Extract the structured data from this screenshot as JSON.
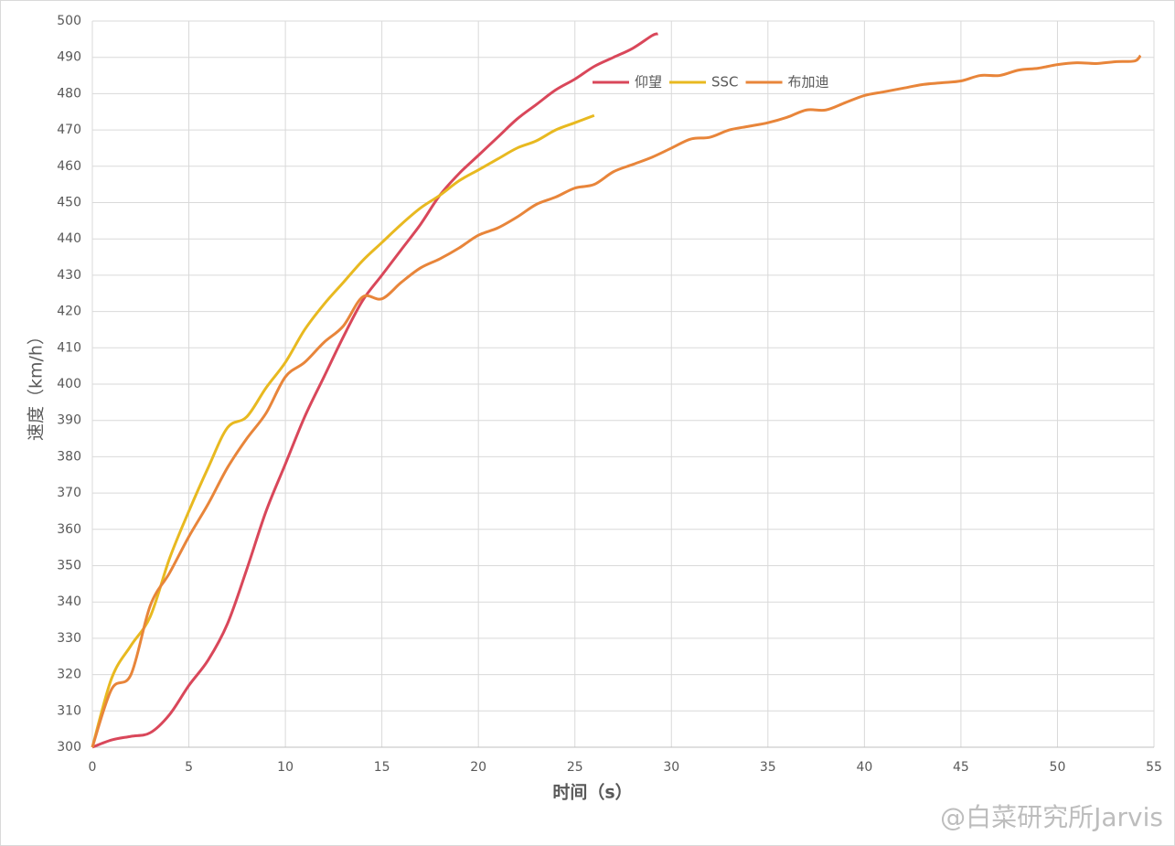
{
  "chart_data": {
    "type": "line",
    "xlabel": "时间（s）",
    "ylabel": "速度（km/h）",
    "xlim": [
      0,
      55
    ],
    "xticks": [
      0,
      5,
      10,
      15,
      20,
      25,
      30,
      35,
      40,
      45,
      50,
      55
    ],
    "ylim": [
      300,
      500
    ],
    "yticks": [
      300,
      310,
      320,
      330,
      340,
      350,
      360,
      370,
      380,
      390,
      400,
      410,
      420,
      430,
      440,
      450,
      460,
      470,
      480,
      490,
      500
    ],
    "grid": true,
    "legend": "top",
    "watermark": "@白菜研究所Jarvis",
    "series": [
      {
        "name": "仰望",
        "color": "#d9475a",
        "x": [
          0,
          1,
          2,
          3,
          4,
          5,
          6,
          7,
          8,
          9,
          10,
          11,
          12,
          13,
          14,
          15,
          16,
          17,
          18,
          19,
          20,
          21,
          22,
          23,
          24,
          25,
          26,
          27,
          28,
          29,
          29.3
        ],
        "values": [
          300,
          302,
          303,
          304,
          309,
          317,
          324,
          334,
          349,
          365,
          378,
          391,
          402,
          413,
          423,
          430,
          437,
          444,
          452,
          458,
          463,
          468,
          473,
          477,
          481,
          484,
          487.5,
          490,
          492.5,
          496,
          496.5
        ]
      },
      {
        "name": "SSC",
        "color": "#e8b920",
        "x": [
          0,
          1,
          2,
          3,
          4,
          5,
          6,
          7,
          8,
          9,
          10,
          11,
          12,
          13,
          14,
          15,
          16,
          17,
          18,
          19,
          20,
          21,
          22,
          23,
          24,
          25,
          26
        ],
        "values": [
          300,
          319,
          328,
          336,
          352,
          365,
          377,
          388,
          391,
          399,
          406,
          415,
          422,
          428,
          434,
          439,
          444,
          448.5,
          452,
          456,
          459,
          462,
          465,
          467,
          470,
          472,
          474
        ]
      },
      {
        "name": "布加迪",
        "color": "#e8853a",
        "x": [
          0,
          1,
          2,
          3,
          4,
          5,
          6,
          7,
          8,
          9,
          10,
          11,
          12,
          13,
          14,
          15,
          16,
          17,
          18,
          19,
          20,
          21,
          22,
          23,
          24,
          25,
          26,
          27,
          28,
          29,
          30,
          31,
          32,
          33,
          34,
          35,
          36,
          37,
          38,
          39,
          40,
          41,
          42,
          43,
          44,
          45,
          46,
          47,
          48,
          49,
          50,
          51,
          52,
          53,
          54,
          54.3
        ],
        "values": [
          300,
          316,
          320,
          339,
          348,
          358,
          367,
          377,
          385,
          392,
          402,
          406,
          411.5,
          416,
          424,
          423.5,
          428,
          432,
          434.5,
          437.5,
          441,
          443,
          446,
          449.5,
          451.5,
          454,
          455,
          458.5,
          460.5,
          462.5,
          465,
          467.5,
          468,
          470,
          471,
          472,
          473.5,
          475.5,
          475.5,
          477.5,
          479.5,
          480.5,
          481.5,
          482.5,
          483,
          483.5,
          485,
          485,
          486.5,
          487,
          488,
          488.5,
          488.3,
          488.8,
          489,
          490.5
        ]
      }
    ]
  }
}
